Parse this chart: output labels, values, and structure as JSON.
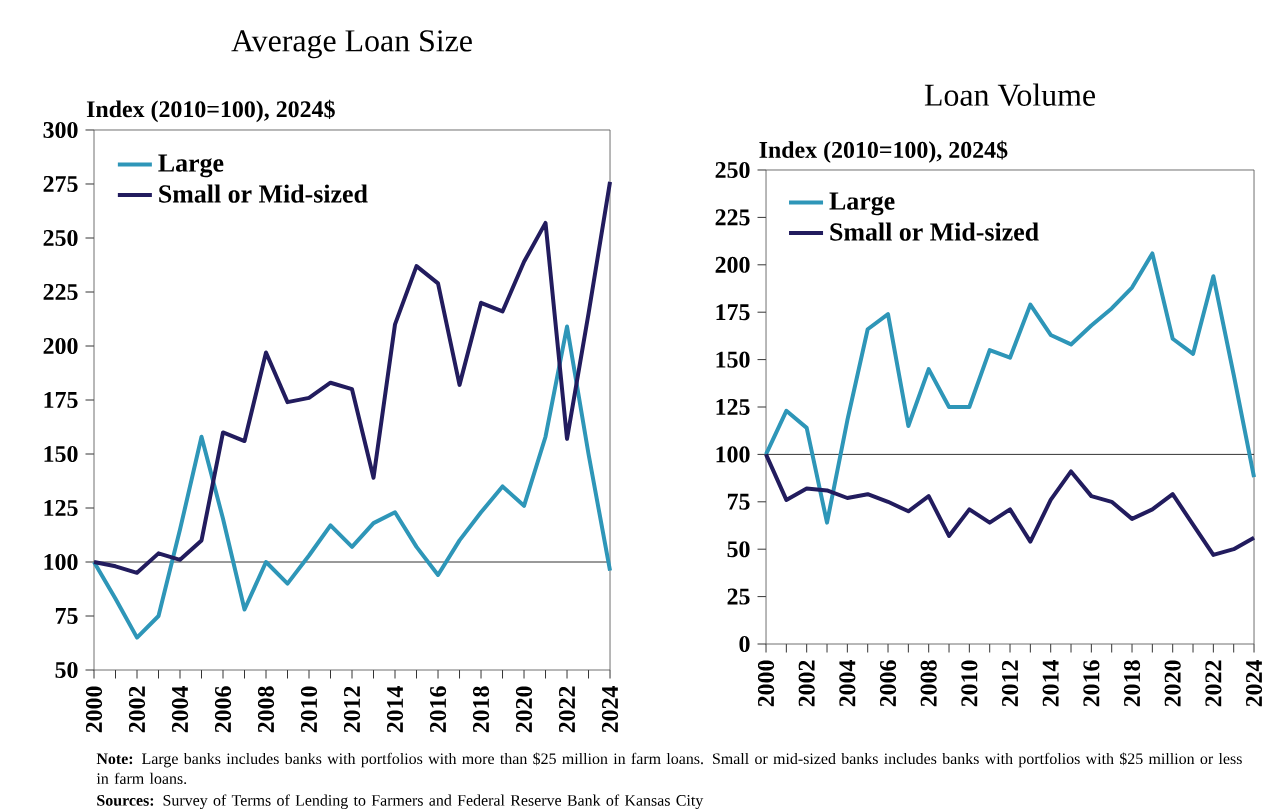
{
  "chart_data": [
    {
      "type": "line",
      "title": "Average Loan Size",
      "ylabel": "Index (2010=100), 2024$",
      "x": [
        2000,
        2001,
        2002,
        2003,
        2004,
        2005,
        2006,
        2007,
        2008,
        2009,
        2010,
        2011,
        2012,
        2013,
        2014,
        2015,
        2016,
        2017,
        2018,
        2019,
        2020,
        2021,
        2022,
        2023,
        2024
      ],
      "series": [
        {
          "name": "Large",
          "color": "#2e96b8",
          "values": [
            100,
            83,
            65,
            75,
            115,
            158,
            120,
            78,
            100,
            90,
            103,
            117,
            107,
            118,
            123,
            107,
            94,
            110,
            123,
            135,
            126,
            158,
            209,
            150,
            96
          ]
        },
        {
          "name": "Small or Mid-sized",
          "color": "#221c5e",
          "values": [
            100,
            98,
            95,
            104,
            101,
            110,
            160,
            156,
            197,
            174,
            176,
            183,
            180,
            139,
            210,
            237,
            229,
            182,
            220,
            216,
            239,
            257,
            157,
            215,
            276
          ]
        }
      ],
      "xlim": [
        2000,
        2024
      ],
      "xticks": [
        2000,
        {
          "value": 2001,
          "label": null
        },
        2002,
        {
          "value": 2003,
          "label": null
        },
        2004,
        {
          "value": 2005,
          "label": null
        },
        2006,
        {
          "value": 2007,
          "label": null
        },
        2008,
        {
          "value": 2009,
          "label": null
        },
        2010,
        {
          "value": 2011,
          "label": null
        },
        2012,
        {
          "value": 2013,
          "label": null
        },
        2014,
        {
          "value": 2015,
          "label": null
        },
        2016,
        {
          "value": 2017,
          "label": null
        },
        2018,
        {
          "value": 2019,
          "label": null
        },
        2020,
        {
          "value": 2021,
          "label": null
        },
        2022,
        {
          "value": 2023,
          "label": null
        },
        2024
      ],
      "ylim": [
        50,
        300
      ],
      "yticks": [
        50,
        75,
        100,
        125,
        150,
        175,
        200,
        225,
        250,
        275,
        300
      ],
      "ref_lines": [
        {
          "axis": "y",
          "value": 100,
          "color": "#000000"
        }
      ],
      "legend": "top left",
      "grid": false,
      "marker": "none",
      "line_style": "solid",
      "annotations": [
        "**Note:** Large banks includes banks with portfolios with more than $25 million in farm loans. Small or mid-sized banks includes banks with portfolios with $25 million or less in farm loans.",
        "**Sources:** Survey of Terms of Lending to Farmers and Federal Reserve Bank of Kansas City"
      ]
    },
    {
      "type": "line",
      "title": "Loan Volume",
      "ylabel": "Index (2010=100), 2024$",
      "x": [
        2000,
        2001,
        2002,
        2003,
        2004,
        2005,
        2006,
        2007,
        2008,
        2009,
        2010,
        2011,
        2012,
        2013,
        2014,
        2015,
        2016,
        2017,
        2018,
        2019,
        2020,
        2021,
        2022,
        2023,
        2024
      ],
      "series": [
        {
          "name": "Large",
          "color": "#2e96b8",
          "values": [
            100,
            123,
            114,
            64,
            118,
            166,
            174,
            115,
            145,
            125,
            125,
            155,
            151,
            179,
            163,
            158,
            168,
            177,
            188,
            206,
            161,
            153,
            194,
            142,
            88
          ]
        },
        {
          "name": "Small or Mid-sized",
          "color": "#221c5e",
          "values": [
            100,
            76,
            82,
            81,
            77,
            79,
            75,
            70,
            78,
            57,
            71,
            64,
            71,
            54,
            76,
            91,
            78,
            75,
            66,
            71,
            79,
            63,
            47,
            50,
            56
          ]
        }
      ],
      "xlim": [
        2000,
        2024
      ],
      "xticks": [
        2000,
        {
          "value": 2001,
          "label": null
        },
        2002,
        {
          "value": 2003,
          "label": null
        },
        2004,
        {
          "value": 2005,
          "label": null
        },
        2006,
        {
          "value": 2007,
          "label": null
        },
        2008,
        {
          "value": 2009,
          "label": null
        },
        2010,
        {
          "value": 2011,
          "label": null
        },
        2012,
        {
          "value": 2013,
          "label": null
        },
        2014,
        {
          "value": 2015,
          "label": null
        },
        2016,
        {
          "value": 2017,
          "label": null
        },
        2018,
        {
          "value": 2019,
          "label": null
        },
        2020,
        {
          "value": 2021,
          "label": null
        },
        2022,
        {
          "value": 2023,
          "label": null
        },
        2024
      ],
      "ylim": [
        0,
        250
      ],
      "yticks": [
        0,
        25,
        50,
        75,
        100,
        125,
        150,
        175,
        200,
        225,
        250
      ],
      "ref_lines": [
        {
          "axis": "y",
          "value": 100,
          "color": "#000000"
        }
      ],
      "legend": "top left",
      "grid": false,
      "marker": "none",
      "line_style": "solid"
    }
  ]
}
